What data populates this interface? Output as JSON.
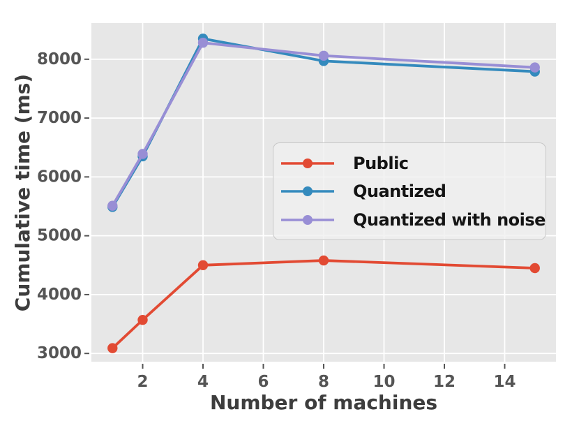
{
  "chart_data": {
    "type": "line",
    "title": "",
    "xlabel": "Number of machines",
    "ylabel": "Cumulative time (ms)",
    "x": [
      1,
      2,
      4,
      8,
      15
    ],
    "series": [
      {
        "name": "Public",
        "color": "#E24A33",
        "values": [
          3090,
          3570,
          4500,
          4580,
          4450
        ]
      },
      {
        "name": "Quantized",
        "color": "#348ABD",
        "values": [
          5490,
          6350,
          8350,
          7970,
          7790
        ]
      },
      {
        "name": "Quantized with noise",
        "color": "#988ED5",
        "values": [
          5510,
          6390,
          8280,
          8060,
          7860
        ]
      }
    ],
    "xticks": [
      2,
      4,
      6,
      8,
      10,
      12,
      14
    ],
    "yticks": [
      3000,
      4000,
      5000,
      6000,
      7000,
      8000
    ],
    "xlim": [
      0.3,
      15.7
    ],
    "ylim": [
      2860,
      8615
    ],
    "grid": true,
    "legend_position": "center-right",
    "styles": {
      "plot_bg": "#E7E7E7",
      "grid_color": "#FFFFFF",
      "tick_color": "#555555",
      "axis_label_color": "#3d3d3d",
      "legend_text_color": "#141414",
      "marker_radius": 7.2,
      "line_width": 3.8
    }
  }
}
